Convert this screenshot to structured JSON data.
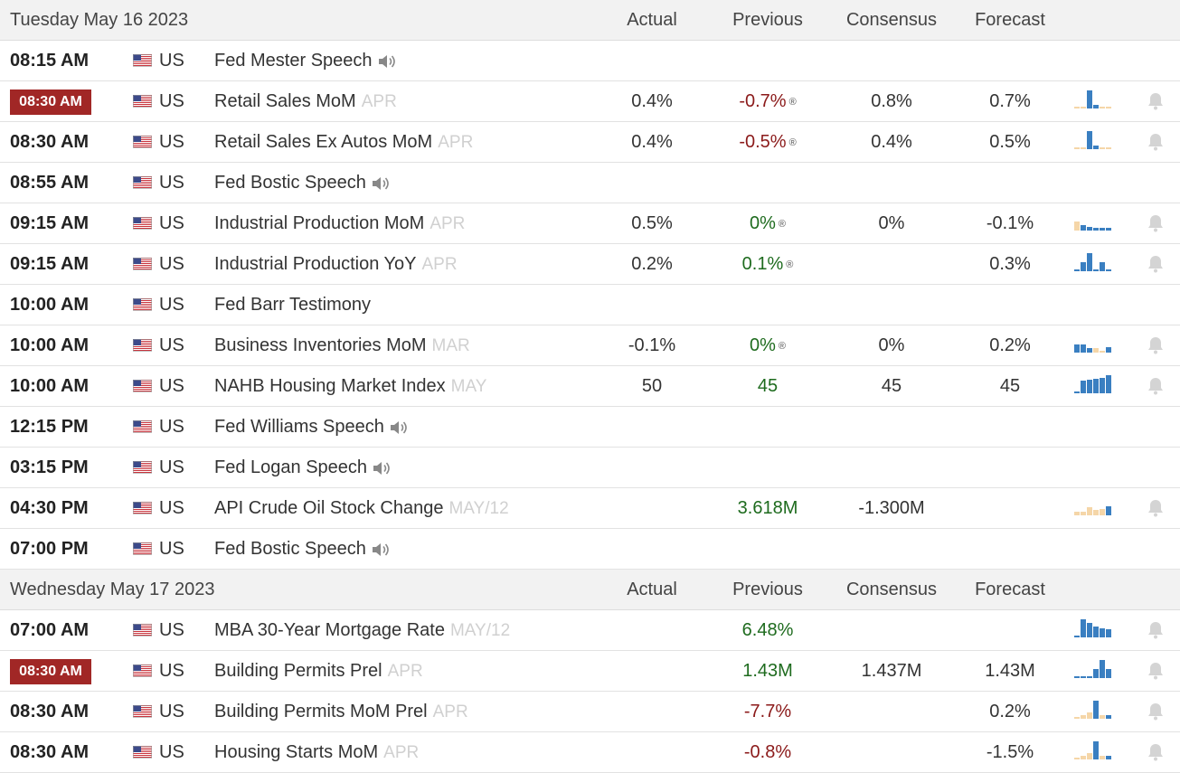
{
  "columns": {
    "actual": "Actual",
    "previous": "Previous",
    "consensus": "Consensus",
    "forecast": "Forecast"
  },
  "colors": {
    "highlight": "#a12726",
    "negative": "#8b1a1a",
    "positive": "#1e6b1e",
    "bar_blue": "#3a7fc1",
    "bar_peach": "#f5d6a8"
  },
  "sections": [
    {
      "date": "Tuesday May 16 2023",
      "rows": [
        {
          "time": "08:15 AM",
          "hl": false,
          "country": "US",
          "event": "Fed Mester Speech",
          "ref": "",
          "speech": true,
          "actual": "",
          "previous": "",
          "prev_class": "",
          "revised": false,
          "consensus": "",
          "forecast": "",
          "spark": []
        },
        {
          "time": "08:30 AM",
          "hl": true,
          "country": "US",
          "event": "Retail Sales MoM",
          "ref": "APR",
          "speech": false,
          "actual": "0.4%",
          "previous": "-0.7%",
          "prev_class": "red",
          "revised": true,
          "consensus": "0.8%",
          "forecast": "0.7%",
          "spark": [
            {
              "v": 0.1,
              "c": "p"
            },
            {
              "v": 0.1,
              "c": "p"
            },
            {
              "v": 1,
              "c": "b"
            },
            {
              "v": 0.2,
              "c": "b"
            },
            {
              "v": 0.1,
              "c": "p"
            },
            {
              "v": 0.1,
              "c": "p"
            }
          ]
        },
        {
          "time": "08:30 AM",
          "hl": false,
          "country": "US",
          "event": "Retail Sales Ex Autos MoM",
          "ref": "APR",
          "speech": false,
          "actual": "0.4%",
          "previous": "-0.5%",
          "prev_class": "red",
          "revised": true,
          "consensus": "0.4%",
          "forecast": "0.5%",
          "spark": [
            {
              "v": 0.1,
              "c": "p"
            },
            {
              "v": 0.1,
              "c": "p"
            },
            {
              "v": 1,
              "c": "b"
            },
            {
              "v": 0.2,
              "c": "b"
            },
            {
              "v": 0.1,
              "c": "p"
            },
            {
              "v": 0.1,
              "c": "p"
            }
          ]
        },
        {
          "time": "08:55 AM",
          "hl": false,
          "country": "US",
          "event": "Fed Bostic Speech",
          "ref": "",
          "speech": true,
          "actual": "",
          "previous": "",
          "prev_class": "",
          "revised": false,
          "consensus": "",
          "forecast": "",
          "spark": []
        },
        {
          "time": "09:15 AM",
          "hl": false,
          "country": "US",
          "event": "Industrial Production MoM",
          "ref": "APR",
          "speech": false,
          "actual": "0.5%",
          "previous": "0%",
          "prev_class": "green",
          "revised": true,
          "consensus": "0%",
          "forecast": "-0.1%",
          "spark": [
            {
              "v": 0.5,
              "c": "p"
            },
            {
              "v": 0.3,
              "c": "b"
            },
            {
              "v": 0.2,
              "c": "b"
            },
            {
              "v": 0.15,
              "c": "b"
            },
            {
              "v": 0.15,
              "c": "b"
            },
            {
              "v": 0.15,
              "c": "b"
            }
          ]
        },
        {
          "time": "09:15 AM",
          "hl": false,
          "country": "US",
          "event": "Industrial Production YoY",
          "ref": "APR",
          "speech": false,
          "actual": "0.2%",
          "previous": "0.1%",
          "prev_class": "green",
          "revised": true,
          "consensus": "",
          "forecast": "0.3%",
          "spark": [
            {
              "v": 0.1,
              "c": "b"
            },
            {
              "v": 0.5,
              "c": "b"
            },
            {
              "v": 1,
              "c": "b"
            },
            {
              "v": 0.1,
              "c": "b"
            },
            {
              "v": 0.5,
              "c": "b"
            },
            {
              "v": 0.1,
              "c": "b"
            }
          ]
        },
        {
          "time": "10:00 AM",
          "hl": false,
          "country": "US",
          "event": "Fed Barr Testimony",
          "ref": "",
          "speech": false,
          "actual": "",
          "previous": "",
          "prev_class": "",
          "revised": false,
          "consensus": "",
          "forecast": "",
          "spark": []
        },
        {
          "time": "10:00 AM",
          "hl": false,
          "country": "US",
          "event": "Business Inventories MoM",
          "ref": "MAR",
          "speech": false,
          "actual": "-0.1%",
          "previous": "0%",
          "prev_class": "green",
          "revised": true,
          "consensus": "0%",
          "forecast": "0.2%",
          "spark": [
            {
              "v": 0.45,
              "c": "b"
            },
            {
              "v": 0.45,
              "c": "b"
            },
            {
              "v": 0.25,
              "c": "b"
            },
            {
              "v": 0.25,
              "c": "p"
            },
            {
              "v": 0.1,
              "c": "p"
            },
            {
              "v": 0.3,
              "c": "b"
            }
          ]
        },
        {
          "time": "10:00 AM",
          "hl": false,
          "country": "US",
          "event": "NAHB Housing Market Index",
          "ref": "MAY",
          "speech": false,
          "actual": "50",
          "previous": "45",
          "prev_class": "green",
          "revised": false,
          "consensus": "45",
          "forecast": "45",
          "spark": [
            {
              "v": 0.1,
              "c": "b"
            },
            {
              "v": 0.7,
              "c": "b"
            },
            {
              "v": 0.75,
              "c": "b"
            },
            {
              "v": 0.8,
              "c": "b"
            },
            {
              "v": 0.85,
              "c": "b"
            },
            {
              "v": 1,
              "c": "b"
            }
          ]
        },
        {
          "time": "12:15 PM",
          "hl": false,
          "country": "US",
          "event": "Fed Williams Speech",
          "ref": "",
          "speech": true,
          "actual": "",
          "previous": "",
          "prev_class": "",
          "revised": false,
          "consensus": "",
          "forecast": "",
          "spark": []
        },
        {
          "time": "03:15 PM",
          "hl": false,
          "country": "US",
          "event": "Fed Logan Speech",
          "ref": "",
          "speech": true,
          "actual": "",
          "previous": "",
          "prev_class": "",
          "revised": false,
          "consensus": "",
          "forecast": "",
          "spark": []
        },
        {
          "time": "04:30 PM",
          "hl": false,
          "country": "US",
          "event": "API Crude Oil Stock Change",
          "ref": "MAY/12",
          "speech": false,
          "actual": "",
          "previous": "3.618M",
          "prev_class": "green",
          "revised": false,
          "consensus": "-1.300M",
          "forecast": "",
          "spark": [
            {
              "v": 0.2,
              "c": "p"
            },
            {
              "v": 0.2,
              "c": "p"
            },
            {
              "v": 0.45,
              "c": "p"
            },
            {
              "v": 0.3,
              "c": "p"
            },
            {
              "v": 0.35,
              "c": "p"
            },
            {
              "v": 0.5,
              "c": "b"
            }
          ]
        },
        {
          "time": "07:00 PM",
          "hl": false,
          "country": "US",
          "event": "Fed Bostic Speech",
          "ref": "",
          "speech": true,
          "actual": "",
          "previous": "",
          "prev_class": "",
          "revised": false,
          "consensus": "",
          "forecast": "",
          "spark": []
        }
      ]
    },
    {
      "date": "Wednesday May 17 2023",
      "rows": [
        {
          "time": "07:00 AM",
          "hl": false,
          "country": "US",
          "event": "MBA 30-Year Mortgage Rate",
          "ref": "MAY/12",
          "speech": false,
          "actual": "",
          "previous": "6.48%",
          "prev_class": "green",
          "revised": false,
          "consensus": "",
          "forecast": "",
          "spark": [
            {
              "v": 0.1,
              "c": "b"
            },
            {
              "v": 1,
              "c": "b"
            },
            {
              "v": 0.8,
              "c": "b"
            },
            {
              "v": 0.6,
              "c": "b"
            },
            {
              "v": 0.5,
              "c": "b"
            },
            {
              "v": 0.45,
              "c": "b"
            }
          ]
        },
        {
          "time": "08:30 AM",
          "hl": true,
          "country": "US",
          "event": "Building Permits Prel",
          "ref": "APR",
          "speech": false,
          "actual": "",
          "previous": "1.43M",
          "prev_class": "green",
          "revised": false,
          "consensus": "1.437M",
          "forecast": "1.43M",
          "spark": [
            {
              "v": 0.1,
              "c": "b"
            },
            {
              "v": 0.1,
              "c": "b"
            },
            {
              "v": 0.1,
              "c": "b"
            },
            {
              "v": 0.5,
              "c": "b"
            },
            {
              "v": 1,
              "c": "b"
            },
            {
              "v": 0.5,
              "c": "b"
            }
          ]
        },
        {
          "time": "08:30 AM",
          "hl": false,
          "country": "US",
          "event": "Building Permits MoM Prel",
          "ref": "APR",
          "speech": false,
          "actual": "",
          "previous": "-7.7%",
          "prev_class": "red",
          "revised": false,
          "consensus": "",
          "forecast": "0.2%",
          "spark": [
            {
              "v": 0.1,
              "c": "p"
            },
            {
              "v": 0.2,
              "c": "p"
            },
            {
              "v": 0.35,
              "c": "p"
            },
            {
              "v": 1,
              "c": "b"
            },
            {
              "v": 0.2,
              "c": "p"
            },
            {
              "v": 0.2,
              "c": "b"
            }
          ]
        },
        {
          "time": "08:30 AM",
          "hl": false,
          "country": "US",
          "event": "Housing Starts MoM",
          "ref": "APR",
          "speech": false,
          "actual": "",
          "previous": "-0.8%",
          "prev_class": "red",
          "revised": false,
          "consensus": "",
          "forecast": "-1.5%",
          "spark": [
            {
              "v": 0.1,
              "c": "p"
            },
            {
              "v": 0.2,
              "c": "p"
            },
            {
              "v": 0.35,
              "c": "p"
            },
            {
              "v": 1,
              "c": "b"
            },
            {
              "v": 0.2,
              "c": "p"
            },
            {
              "v": 0.2,
              "c": "b"
            }
          ]
        }
      ]
    }
  ]
}
